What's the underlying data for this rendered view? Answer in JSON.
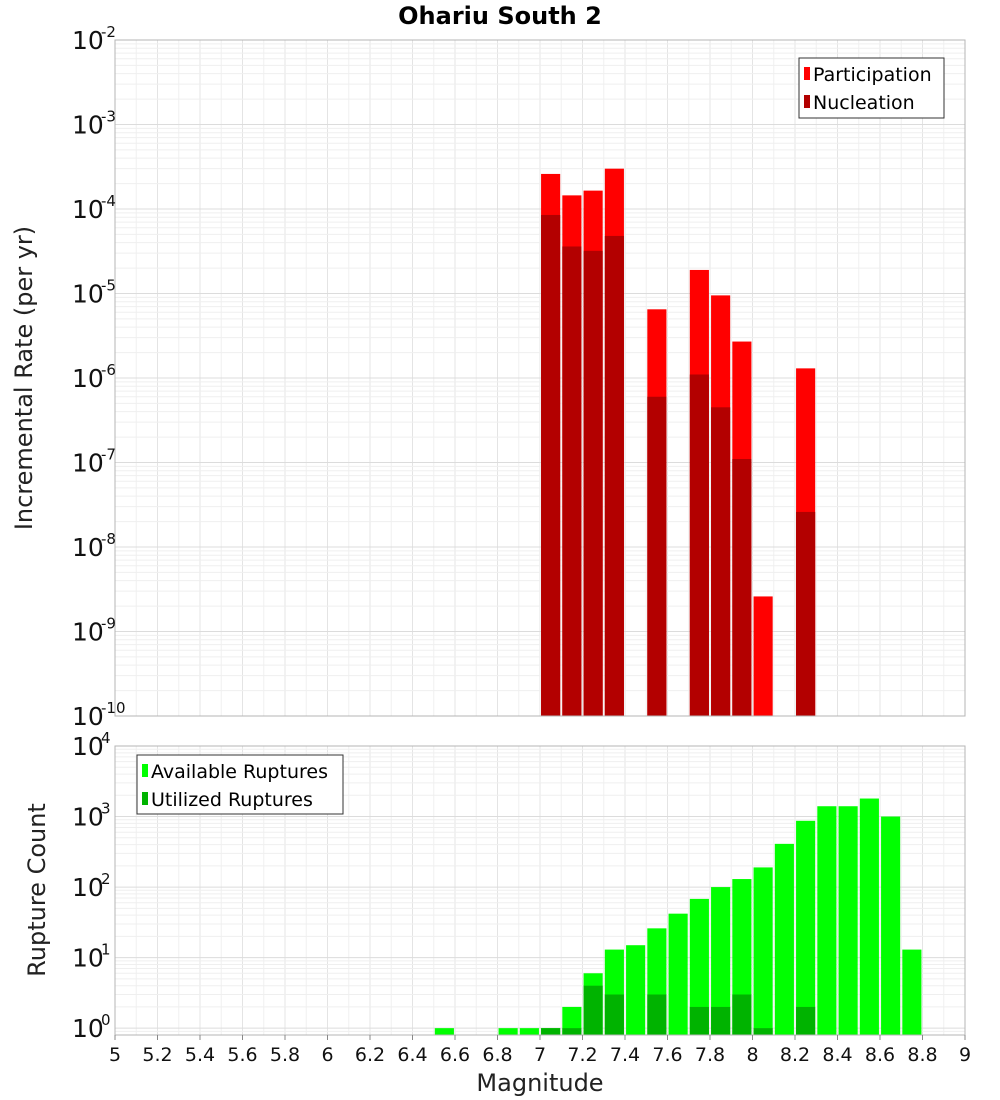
{
  "title": "Ohariu South 2",
  "xlabel": "Magnitude",
  "colors": {
    "participation": "#ff0000",
    "nucleation": "#b30000",
    "available": "#00ff00",
    "utilized": "#00b300"
  },
  "chart_data": [
    {
      "type": "bar",
      "scale": "log",
      "ylabel": "Incremental Rate (per yr)",
      "ylim": [
        1e-10,
        0.01
      ],
      "xlim": [
        5,
        9
      ],
      "legend_position": "top-right",
      "x": [
        7.05,
        7.15,
        7.25,
        7.35,
        7.55,
        7.75,
        7.85,
        7.95,
        8.05,
        8.25
      ],
      "series": [
        {
          "name": "Participation",
          "values": [
            0.00026,
            0.000145,
            0.000165,
            0.0003,
            6.5e-06,
            1.9e-05,
            9.5e-06,
            2.7e-06,
            2.6e-09,
            1.3e-06
          ]
        },
        {
          "name": "Nucleation",
          "values": [
            8.5e-05,
            3.6e-05,
            3.2e-05,
            4.8e-05,
            6e-07,
            1.1e-06,
            4.5e-07,
            1.1e-07,
            null,
            2.6e-08
          ]
        }
      ]
    },
    {
      "type": "bar",
      "scale": "log",
      "ylabel": "Rupture Count",
      "ylim": [
        0.8,
        10000
      ],
      "xlim": [
        5,
        9
      ],
      "legend_position": "top-left",
      "x": [
        6.55,
        6.85,
        6.95,
        7.05,
        7.15,
        7.25,
        7.35,
        7.45,
        7.55,
        7.65,
        7.75,
        7.85,
        7.95,
        8.05,
        8.15,
        8.25,
        8.35,
        8.45,
        8.55,
        8.65,
        8.75
      ],
      "series": [
        {
          "name": "Available Ruptures",
          "values": [
            1,
            1,
            1,
            1,
            2,
            6,
            13,
            15,
            26,
            42,
            68,
            100,
            130,
            190,
            410,
            870,
            1400,
            1400,
            1800,
            1000,
            13
          ]
        },
        {
          "name": "Utilized Ruptures",
          "values": [
            null,
            null,
            null,
            1,
            1,
            4,
            3,
            null,
            3,
            null,
            2,
            2,
            3,
            1,
            null,
            2,
            null,
            null,
            null,
            null,
            null
          ]
        }
      ]
    }
  ]
}
